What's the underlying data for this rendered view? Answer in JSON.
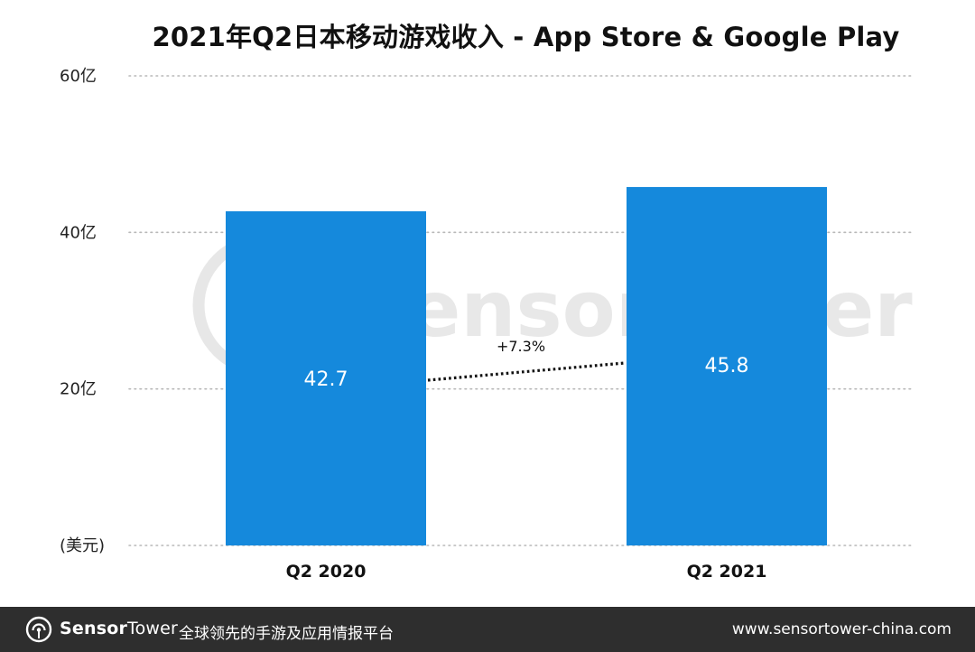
{
  "chart_data": {
    "type": "bar",
    "title": "2021年Q2日本移动游戏收入 - App Store & Google Play",
    "categories": [
      "Q2 2020",
      "Q2 2021"
    ],
    "values": [
      42.7,
      45.8
    ],
    "value_labels": [
      "42.7",
      "45.8"
    ],
    "ylim": [
      0,
      60
    ],
    "yticks": [
      {
        "value": 60,
        "label": "60亿"
      },
      {
        "value": 40,
        "label": "40亿"
      },
      {
        "value": 20,
        "label": "20亿"
      },
      {
        "value": 0,
        "label": "(美元)"
      }
    ],
    "growth_label": "+7.3%",
    "grid": true,
    "bar_color": "#1589dc",
    "watermark": "SensorTower"
  },
  "footer": {
    "brand_bold": "Sensor",
    "brand_light": "Tower",
    "slogan": "全球领先的手游及应用情报平台",
    "url": "www.sensortower-china.com",
    "logo_icon": "sensortower-logo-icon",
    "background": "#2e2e2e"
  }
}
